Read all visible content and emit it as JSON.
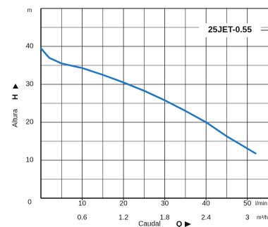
{
  "chart_data": {
    "type": "line",
    "legend": "upper right",
    "ylabel": "Altura",
    "ysymbol": "H",
    "yunit": "m",
    "xlabel": "Caudal",
    "xsymbol": "Q",
    "xunit": "l/min",
    "x2unit": "m³/h",
    "x": [
      0,
      2,
      5,
      10,
      15,
      20,
      25,
      30,
      35,
      40,
      45,
      52
    ],
    "series": [
      {
        "name": "25JET-0.55",
        "color": "#1f77c4",
        "values": [
          39.5,
          37,
          35.5,
          34.3,
          32.5,
          30.5,
          28.3,
          25.8,
          23,
          20,
          16.3,
          11.8
        ]
      }
    ],
    "xlim": [
      0,
      55
    ],
    "xticks": [
      10,
      20,
      30,
      40,
      50
    ],
    "x2lim": [
      0,
      3.3
    ],
    "x2ticks": [
      0.6,
      1.2,
      1.8,
      2.4,
      3
    ],
    "ylim": [
      0,
      50
    ],
    "yticks": [
      0,
      10,
      20,
      30,
      40
    ],
    "grid": true
  }
}
